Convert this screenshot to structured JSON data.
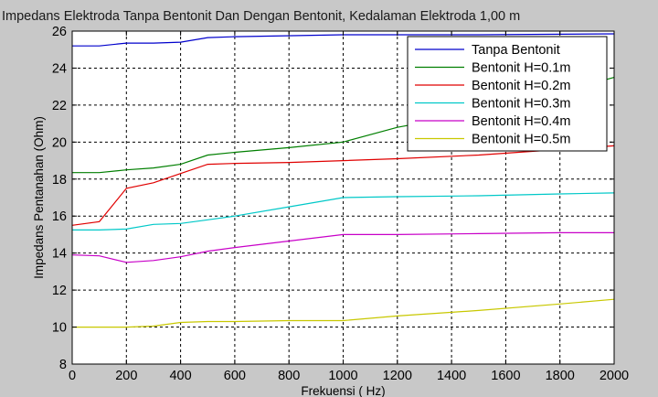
{
  "chart_data": {
    "type": "line",
    "title": "Impedans Elektroda Tanpa Bentonit Dan Dengan Bentonit, Kedalaman Elektroda 1,00 m",
    "xlabel": "Frekuensi ( Hz)",
    "ylabel": "Impedans Pentanahan (Ohm)",
    "xlim": [
      0,
      2000
    ],
    "ylim": [
      8,
      26
    ],
    "xticks": [
      0,
      200,
      400,
      600,
      800,
      1000,
      1200,
      1400,
      1600,
      1800,
      2000
    ],
    "yticks": [
      8,
      10,
      12,
      14,
      16,
      18,
      20,
      22,
      24,
      26
    ],
    "grid": true,
    "legend_position": "top-right",
    "series": [
      {
        "name": "Tanpa Bentonit",
        "color": "#0000cc",
        "x": [
          0,
          100,
          200,
          300,
          400,
          500,
          600,
          1000,
          1500,
          2000
        ],
        "y": [
          25.2,
          25.2,
          25.35,
          25.35,
          25.4,
          25.65,
          25.7,
          25.8,
          25.8,
          25.85
        ]
      },
      {
        "name": "Bentonit H=0.1m",
        "color": "#007f00",
        "x": [
          0,
          100,
          200,
          300,
          400,
          500,
          600,
          800,
          1000,
          1200,
          1500,
          1800,
          2000
        ],
        "y": [
          18.35,
          18.35,
          18.5,
          18.6,
          18.8,
          19.3,
          19.45,
          19.7,
          20.0,
          20.8,
          21.6,
          22.7,
          23.5
        ]
      },
      {
        "name": "Bentonit H=0.2m",
        "color": "#e00000",
        "x": [
          0,
          100,
          200,
          300,
          400,
          500,
          600,
          800,
          1000,
          1200,
          1500,
          1800,
          2000
        ],
        "y": [
          15.5,
          15.7,
          17.5,
          17.8,
          18.3,
          18.8,
          18.85,
          18.9,
          19.0,
          19.1,
          19.3,
          19.6,
          19.8
        ]
      },
      {
        "name": "Bentonit H=0.3m",
        "color": "#00c8c8",
        "x": [
          0,
          100,
          200,
          300,
          400,
          500,
          600,
          800,
          1000,
          1200,
          1500,
          1800,
          2000
        ],
        "y": [
          15.25,
          15.25,
          15.3,
          15.55,
          15.6,
          15.8,
          16.0,
          16.5,
          17.0,
          17.05,
          17.1,
          17.2,
          17.25
        ]
      },
      {
        "name": "Bentonit H=0.4m",
        "color": "#c800c8",
        "x": [
          0,
          100,
          200,
          300,
          400,
          500,
          600,
          800,
          1000,
          1200,
          1500,
          1800,
          2000
        ],
        "y": [
          13.9,
          13.85,
          13.5,
          13.6,
          13.8,
          14.1,
          14.3,
          14.65,
          15.0,
          15.0,
          15.05,
          15.1,
          15.1
        ]
      },
      {
        "name": "Bentonit H=0.5m",
        "color": "#c8c800",
        "x": [
          0,
          100,
          200,
          300,
          400,
          500,
          600,
          800,
          1000,
          1200,
          1500,
          1800,
          2000
        ],
        "y": [
          10.0,
          10.0,
          10.0,
          10.05,
          10.25,
          10.3,
          10.3,
          10.35,
          10.35,
          10.6,
          10.9,
          11.25,
          11.5
        ]
      }
    ]
  }
}
